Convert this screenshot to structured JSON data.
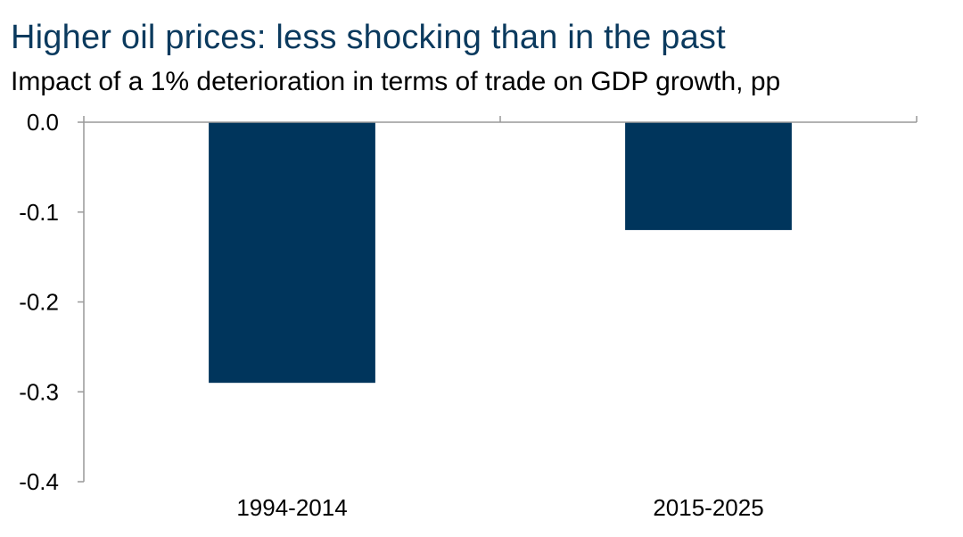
{
  "chart_data": {
    "type": "bar",
    "title": "Higher oil prices: less shocking than in the past",
    "subtitle": "Impact of a 1% deterioration in terms of trade on GDP growth, pp",
    "categories": [
      "1994-2014",
      "2015-2025"
    ],
    "values": [
      -0.29,
      -0.12
    ],
    "ylim": [
      -0.4,
      0.0
    ],
    "yticks": [
      0.0,
      -0.1,
      -0.2,
      -0.3,
      -0.4
    ],
    "ytick_labels": [
      "0.0",
      "-0.1",
      "-0.2",
      "-0.3",
      "-0.4"
    ],
    "xlabel": "",
    "ylabel": "",
    "grid": false,
    "legend": "none"
  },
  "colors": {
    "title": "#0b3a5e",
    "text": "#000000",
    "bar": "#00355c",
    "axis": "#999999"
  }
}
